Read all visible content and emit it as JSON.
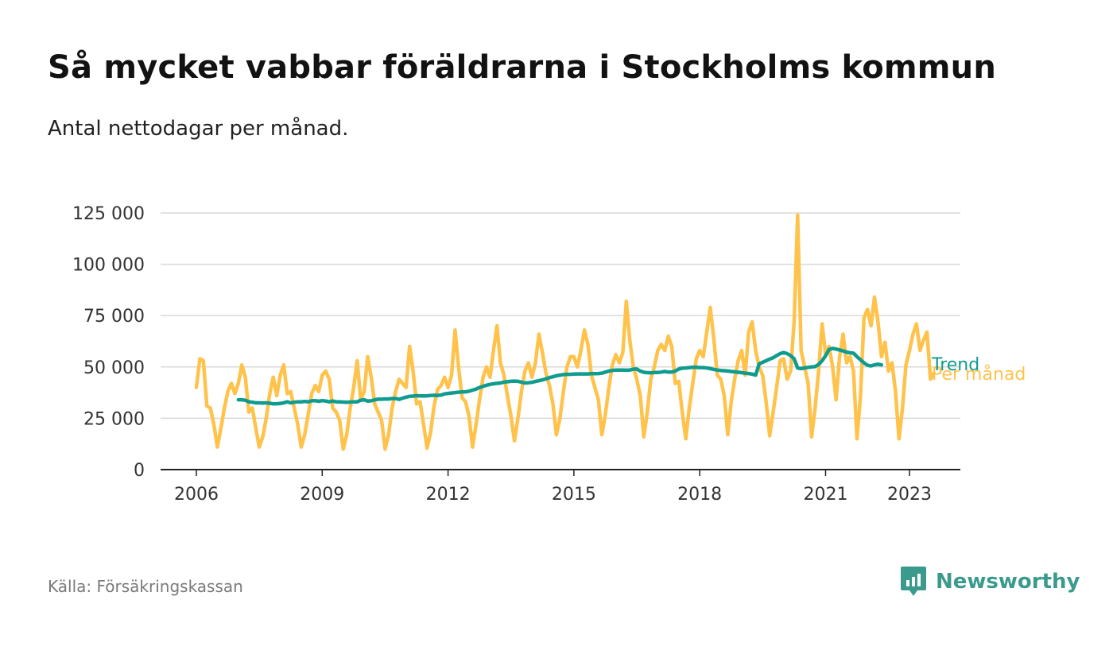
{
  "title": "Så mycket vabbar föräldrarna i Stockholms kommun",
  "subtitle": "Antal nettodagar per månad.",
  "source": "Källa: Försäkringskassan",
  "brand": {
    "name": "Newsworthy",
    "icon": "newsworthy-logo-icon",
    "color": "#3a9a8e"
  },
  "chart_data": {
    "type": "line",
    "title": "Så mycket vabbar föräldrarna i Stockholms kommun",
    "subtitle": "Antal nettodagar per månad.",
    "xlabel": "",
    "ylabel": "",
    "ylim": [
      0,
      125000
    ],
    "y_ticks": [
      0,
      25000,
      50000,
      75000,
      100000,
      125000
    ],
    "y_tick_labels": [
      "0",
      "25 000",
      "50 000",
      "75 000",
      "100 000",
      "125 000"
    ],
    "x_ticks": [
      2006,
      2009,
      2012,
      2015,
      2018,
      2021,
      2023
    ],
    "x_tick_labels": [
      "2006",
      "2009",
      "2012",
      "2015",
      "2018",
      "2021",
      "2023"
    ],
    "grid": true,
    "legend": "inline-right",
    "x_start": "2006-01",
    "x_step": "month",
    "series": [
      {
        "name": "Per månad",
        "color": "#ffc24b",
        "values": [
          40000,
          54000,
          53000,
          31000,
          30000,
          22000,
          11000,
          20000,
          30000,
          38000,
          42000,
          37000,
          42000,
          51000,
          45000,
          28000,
          30000,
          20000,
          11000,
          16000,
          25000,
          37000,
          45000,
          36000,
          46000,
          51000,
          37000,
          38000,
          30000,
          22000,
          11000,
          17000,
          27000,
          37000,
          41000,
          38000,
          46000,
          48000,
          44000,
          30000,
          28000,
          24000,
          10000,
          17000,
          30000,
          40000,
          53000,
          34000,
          38000,
          55000,
          45000,
          32000,
          28000,
          24000,
          10000,
          17000,
          30000,
          38000,
          44000,
          42000,
          40000,
          60000,
          48000,
          32000,
          33000,
          22000,
          10500,
          18000,
          31000,
          39000,
          41000,
          45000,
          40000,
          46000,
          68000,
          50000,
          35000,
          33000,
          26000,
          11000,
          22000,
          34000,
          45000,
          50000,
          45000,
          58000,
          70000,
          52000,
          46000,
          36000,
          26000,
          14000,
          25000,
          38000,
          48000,
          52000,
          45000,
          52000,
          66000,
          57000,
          47000,
          41000,
          32000,
          17000,
          25000,
          38000,
          50000,
          55000,
          55000,
          50000,
          58000,
          68000,
          61000,
          46000,
          40000,
          34000,
          17000,
          27000,
          40000,
          51000,
          56000,
          52000,
          57000,
          82000,
          63000,
          50000,
          44000,
          36000,
          16000,
          28000,
          44000,
          50000,
          58000,
          61000,
          58000,
          65000,
          60000,
          42000,
          43000,
          28000,
          15000,
          30000,
          42000,
          54000,
          58000,
          55000,
          67000,
          79000,
          64000,
          46000,
          44000,
          36000,
          17000,
          33000,
          44000,
          53000,
          58000,
          46000,
          67000,
          72000,
          58000,
          50000,
          46000,
          33000,
          16500,
          28000,
          40000,
          53000,
          54000,
          44000,
          48000,
          72000,
          124000,
          58000,
          50000,
          42000,
          16000,
          30000,
          48000,
          71000,
          56000,
          60000,
          50000,
          34000,
          55000,
          66000,
          52000,
          55000,
          48000,
          15000,
          36000,
          74000,
          78000,
          70000,
          84000,
          72000,
          55000,
          62000,
          48000,
          52000,
          38000,
          15000,
          30000,
          51000,
          58000,
          66000,
          71000,
          58000,
          63000,
          67000,
          44000,
          47000
        ]
      },
      {
        "name": "Trend",
        "color": "#0f9b8e",
        "x_start": "2007-01",
        "values": [
          34000,
          34000,
          33800,
          33000,
          32800,
          32500,
          32500,
          32400,
          32500,
          32300,
          32000,
          32100,
          32200,
          32500,
          33000,
          32500,
          32800,
          33000,
          33000,
          33200,
          33000,
          33500,
          33600,
          33300,
          33600,
          33400,
          33000,
          33400,
          33000,
          33000,
          32900,
          32800,
          32900,
          33000,
          33000,
          33800,
          34000,
          33400,
          33500,
          34000,
          34300,
          34300,
          34400,
          34400,
          34600,
          34600,
          34200,
          34800,
          35300,
          35700,
          35800,
          36000,
          35900,
          35900,
          35900,
          36100,
          36200,
          36100,
          36300,
          36900,
          37100,
          37300,
          37500,
          37700,
          37800,
          37900,
          38200,
          38700,
          39200,
          40000,
          40500,
          41100,
          41500,
          41800,
          42000,
          42200,
          42600,
          42800,
          43000,
          43100,
          43000,
          42600,
          42200,
          42300,
          42500,
          42900,
          43300,
          43700,
          44200,
          44800,
          45200,
          45700,
          46000,
          46300,
          46400,
          46400,
          46500,
          46600,
          46600,
          46600,
          46600,
          46700,
          46700,
          46800,
          47000,
          47500,
          48000,
          48300,
          48500,
          48500,
          48500,
          48400,
          48500,
          48900,
          49000,
          48000,
          47400,
          47200,
          47100,
          47300,
          47300,
          47500,
          47800,
          47500,
          47500,
          48000,
          49000,
          49400,
          49500,
          49700,
          49800,
          49800,
          49700,
          49700,
          49500,
          49200,
          48800,
          48500,
          48300,
          48200,
          48000,
          47800,
          47600,
          47400,
          47200,
          47000,
          46800,
          46500,
          46000,
          51500,
          52300,
          53000,
          53800,
          54500,
          55500,
          56500,
          57000,
          56500,
          55500,
          54000,
          49500,
          49200,
          49500,
          49800,
          50000,
          50200,
          51200,
          53000,
          55500,
          58500,
          59000,
          58700,
          58300,
          57800,
          57200,
          56900,
          56700,
          55000,
          53500,
          52000,
          50800,
          50500,
          51000,
          51300,
          51000
        ]
      }
    ]
  }
}
